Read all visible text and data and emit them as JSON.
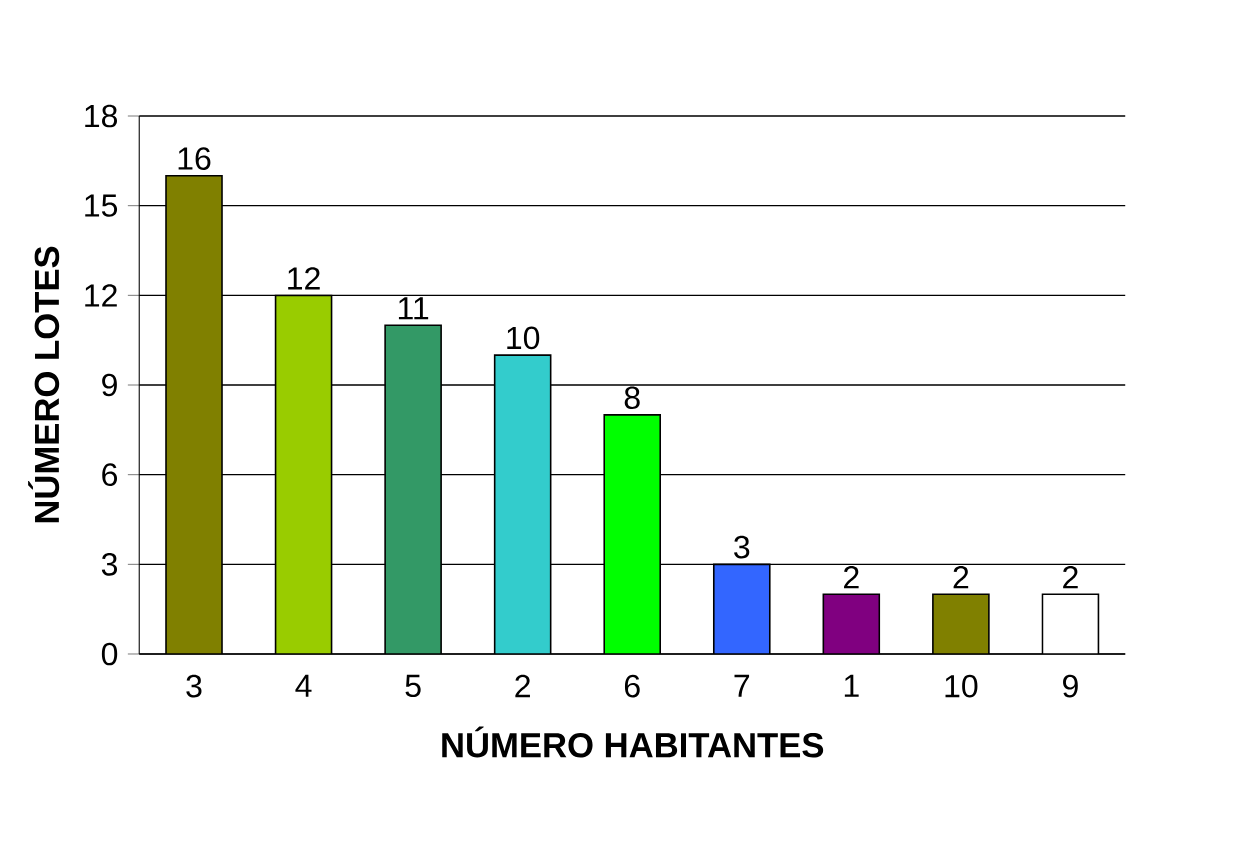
{
  "chart_data": {
    "type": "bar",
    "xlabel": "NÚMERO HABITANTES",
    "ylabel": "NÚMERO LOTES",
    "categories": [
      "3",
      "4",
      "5",
      "2",
      "6",
      "7",
      "1",
      "10",
      "9"
    ],
    "values": [
      16,
      12,
      11,
      10,
      8,
      3,
      2,
      2,
      2
    ],
    "colors": [
      "#808000",
      "#99cc00",
      "#339966",
      "#33cccc",
      "#00ff00",
      "#3366ff",
      "#800080",
      "#808000",
      "#ffffff"
    ],
    "ylim": [
      0,
      18
    ],
    "yticks": [
      0,
      3,
      6,
      9,
      12,
      15,
      18
    ],
    "grid": "y",
    "data_labels": true
  }
}
